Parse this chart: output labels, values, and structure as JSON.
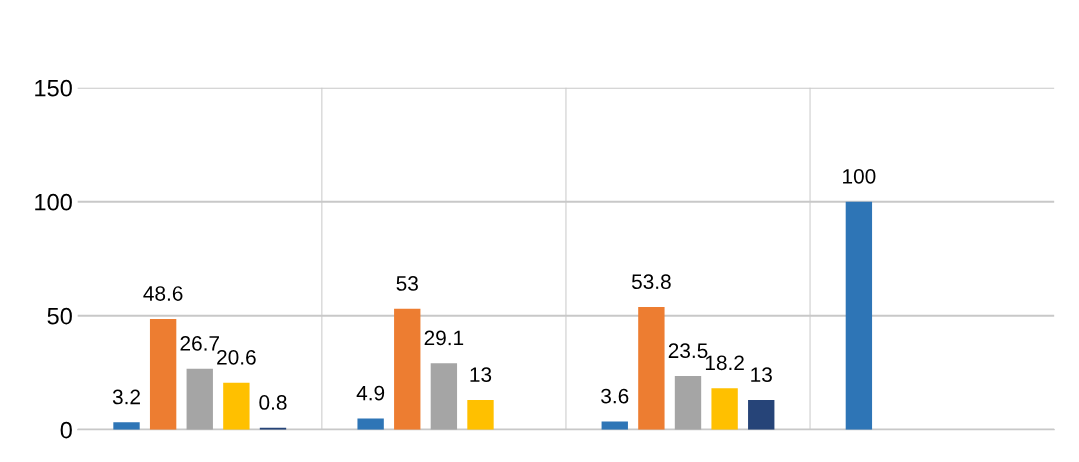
{
  "chart_data": {
    "type": "bar",
    "categories": [
      null,
      null,
      null,
      null
    ],
    "series": [
      {
        "color": "#2e75b6",
        "values": [
          3.2,
          4.9,
          3.6,
          100
        ]
      },
      {
        "color": "#ed7d31",
        "values": [
          48.6,
          53,
          53.8,
          null
        ]
      },
      {
        "color": "#a5a5a5",
        "values": [
          26.7,
          29.1,
          23.5,
          null
        ]
      },
      {
        "color": "#ffc000",
        "values": [
          20.6,
          13,
          18.2,
          null
        ]
      },
      {
        "color": "#264478",
        "values": [
          0.8,
          null,
          13,
          null
        ]
      }
    ],
    "ylim": [
      0,
      150
    ],
    "yticks": [
      0,
      50,
      100,
      150
    ],
    "data_labels": true,
    "grid": true
  }
}
